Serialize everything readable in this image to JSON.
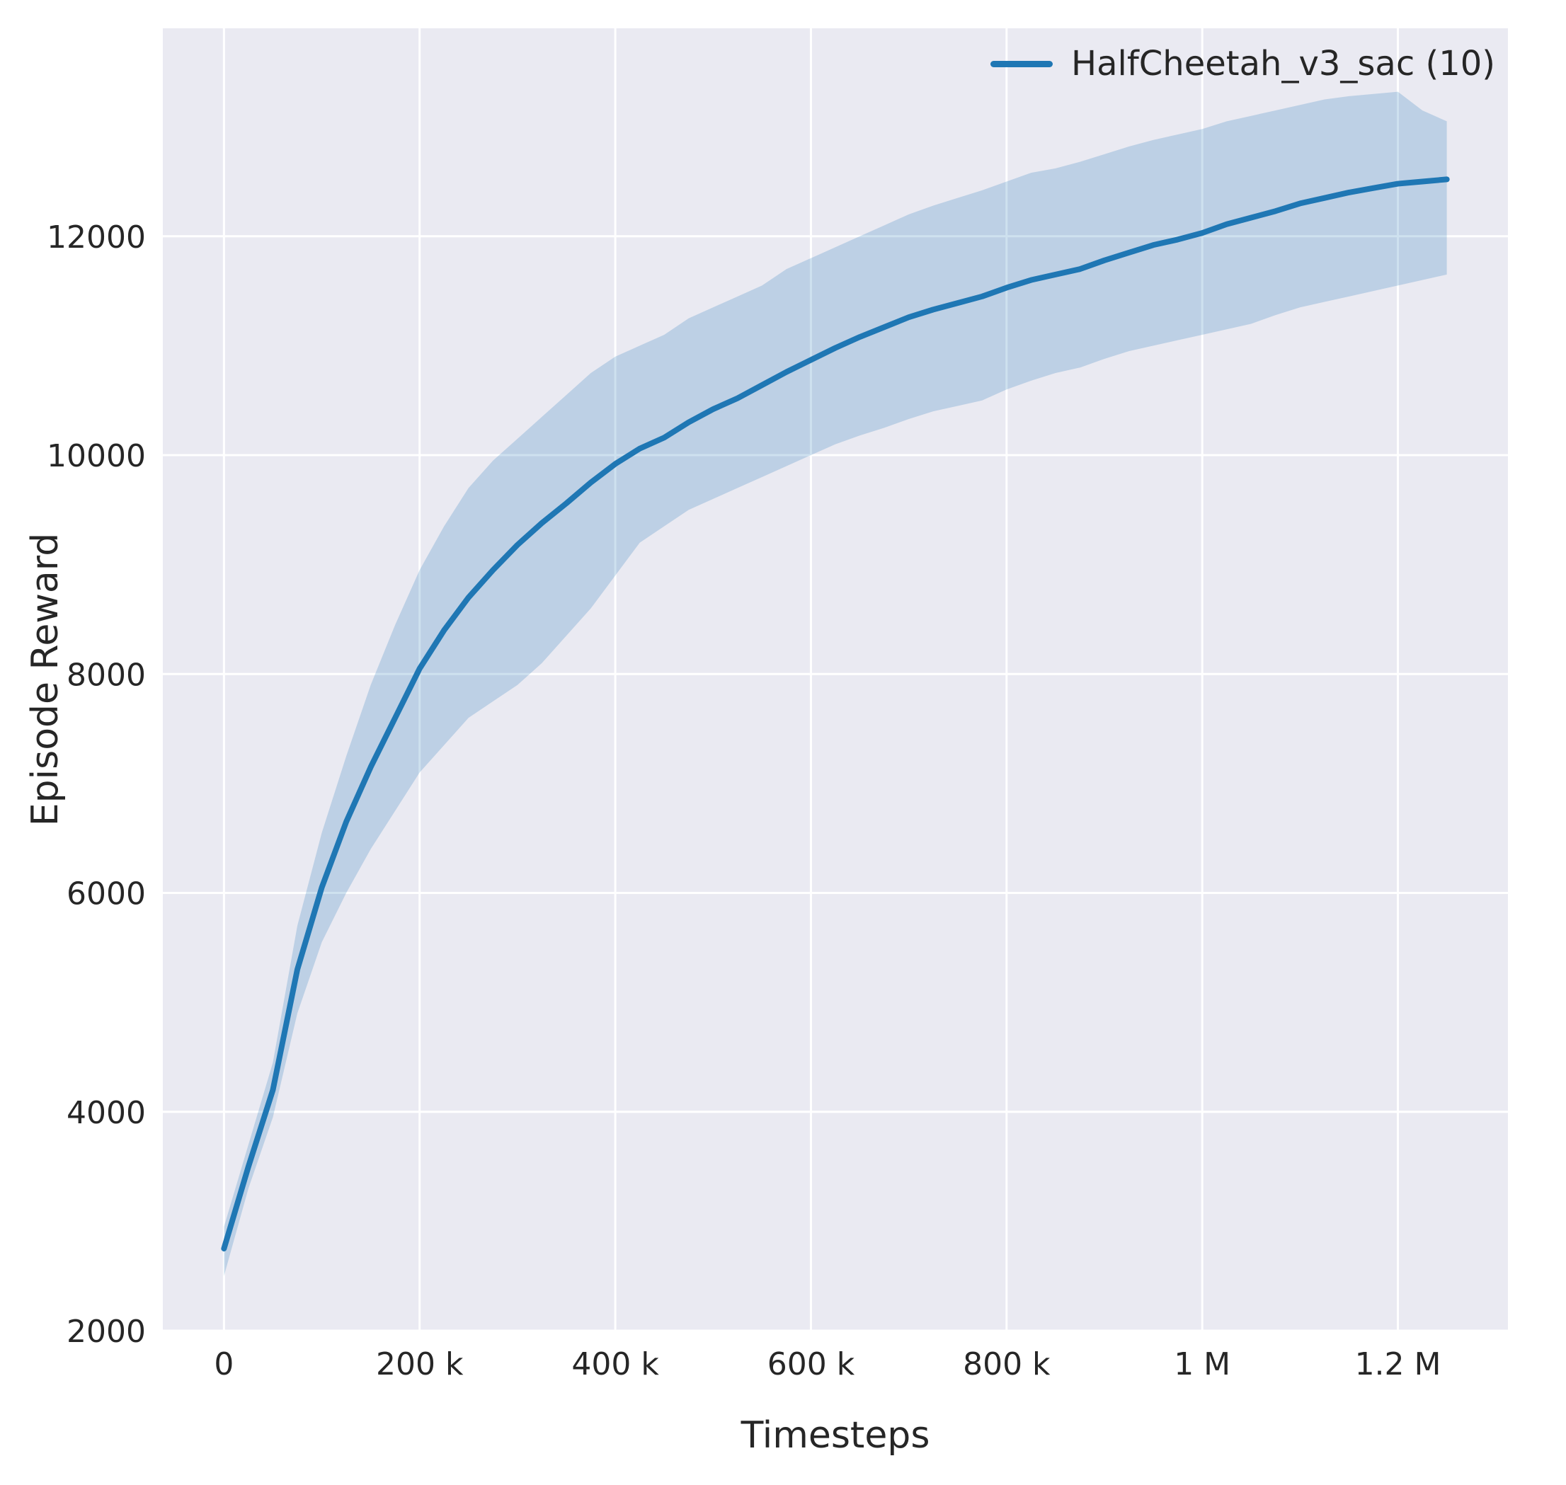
{
  "chart_data": {
    "type": "line",
    "title": "",
    "xlabel": "Timesteps",
    "ylabel": "Episode Reward",
    "grid": true,
    "legend_position": "upper right",
    "background": "#eaeaf2",
    "grid_color": "#ffffff",
    "band_opacity": 0.22,
    "xlim": [
      -62500,
      1312500
    ],
    "ylim": [
      2000,
      13900
    ],
    "x_ticks": [
      0,
      200000,
      400000,
      600000,
      800000,
      1000000,
      1200000
    ],
    "x_tick_labels": [
      "0",
      "200 k",
      "400 k",
      "600 k",
      "800 k",
      "1 M",
      "1.2 M"
    ],
    "y_ticks": [
      2000,
      4000,
      6000,
      8000,
      10000,
      12000
    ],
    "y_tick_labels": [
      "2000",
      "4000",
      "6000",
      "8000",
      "10000",
      "12000"
    ],
    "legend": [
      {
        "label": "HalfCheetah_v3_sac (10)",
        "color": "#1f77b4"
      }
    ],
    "x": [
      0,
      25000,
      50000,
      75000,
      100000,
      125000,
      150000,
      175000,
      200000,
      225000,
      250000,
      275000,
      300000,
      325000,
      350000,
      375000,
      400000,
      425000,
      450000,
      475000,
      500000,
      525000,
      550000,
      575000,
      600000,
      625000,
      650000,
      675000,
      700000,
      725000,
      750000,
      775000,
      800000,
      825000,
      850000,
      875000,
      900000,
      925000,
      950000,
      975000,
      1000000,
      1025000,
      1050000,
      1075000,
      1100000,
      1125000,
      1150000,
      1175000,
      1200000,
      1225000,
      1250000
    ],
    "series": [
      {
        "name": "HalfCheetah_v3_sac (10)",
        "color": "#1f77b4",
        "mean": [
          2750,
          3500,
          4200,
          5300,
          6050,
          6650,
          7150,
          7600,
          8050,
          8400,
          8700,
          8950,
          9180,
          9380,
          9560,
          9750,
          9920,
          10060,
          10160,
          10300,
          10420,
          10520,
          10640,
          10760,
          10870,
          10980,
          11080,
          11170,
          11260,
          11330,
          11390,
          11450,
          11530,
          11600,
          11650,
          11700,
          11780,
          11850,
          11920,
          11970,
          12030,
          12110,
          12170,
          12230,
          12300,
          12350,
          12400,
          12440,
          12480,
          12500,
          12520
        ],
        "lower": [
          2500,
          3300,
          3950,
          4900,
          5550,
          6000,
          6400,
          6750,
          7100,
          7350,
          7600,
          7750,
          7900,
          8100,
          8350,
          8600,
          8900,
          9200,
          9350,
          9500,
          9600,
          9700,
          9800,
          9900,
          10000,
          10100,
          10180,
          10250,
          10330,
          10400,
          10450,
          10500,
          10600,
          10680,
          10750,
          10800,
          10880,
          10950,
          11000,
          11050,
          11100,
          11150,
          11200,
          11280,
          11350,
          11400,
          11450,
          11500,
          11550,
          11600,
          11650
        ],
        "upper": [
          2950,
          3700,
          4450,
          5700,
          6550,
          7250,
          7900,
          8450,
          8950,
          9350,
          9700,
          9950,
          10150,
          10350,
          10550,
          10750,
          10900,
          11000,
          11100,
          11250,
          11350,
          11450,
          11550,
          11700,
          11800,
          11900,
          12000,
          12100,
          12200,
          12280,
          12350,
          12420,
          12500,
          12580,
          12620,
          12680,
          12750,
          12820,
          12880,
          12930,
          12980,
          13050,
          13100,
          13150,
          13200,
          13250,
          13280,
          13300,
          13320,
          13150,
          13050
        ]
      }
    ]
  }
}
